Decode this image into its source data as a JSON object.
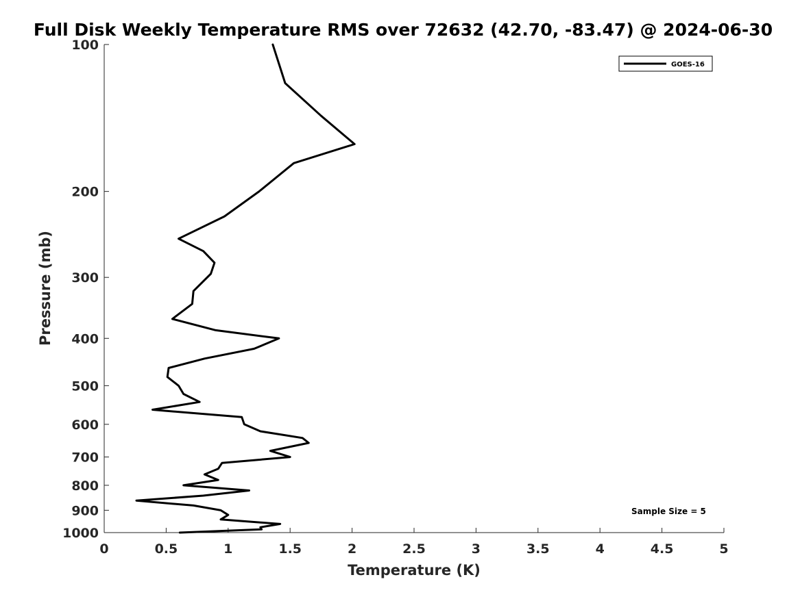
{
  "chart_data": {
    "type": "line",
    "title": "Full Disk Weekly Temperature RMS over 72632 (42.70, -83.47) @ 2024-06-30",
    "xlabel": "Temperature (K)",
    "ylabel": "Pressure (mb)",
    "xlim": [
      0,
      5
    ],
    "ylim": [
      100,
      1000
    ],
    "y_scale": "log",
    "y_reversed": true,
    "x_ticks": [
      "0",
      "0.5",
      "1",
      "1.5",
      "2",
      "2.5",
      "3",
      "3.5",
      "4",
      "4.5",
      "5"
    ],
    "y_ticks": [
      "100",
      "200",
      "300",
      "400",
      "500",
      "600",
      "700",
      "800",
      "900",
      "1000"
    ],
    "grid": false,
    "legend_position": "top-right",
    "annotation": "Sample Size = 5",
    "series": [
      {
        "name": "GOES-16",
        "color": "#000000",
        "points": [
          [
            1.36,
            100
          ],
          [
            1.46,
            120
          ],
          [
            1.75,
            140
          ],
          [
            2.02,
            160
          ],
          [
            1.53,
            175
          ],
          [
            1.25,
            200
          ],
          [
            0.97,
            225
          ],
          [
            0.6,
            250
          ],
          [
            0.8,
            265
          ],
          [
            0.89,
            280
          ],
          [
            0.86,
            295
          ],
          [
            0.72,
            320
          ],
          [
            0.71,
            340
          ],
          [
            0.55,
            365
          ],
          [
            0.9,
            385
          ],
          [
            1.41,
            400
          ],
          [
            1.21,
            420
          ],
          [
            0.81,
            440
          ],
          [
            0.52,
            460
          ],
          [
            0.51,
            480
          ],
          [
            0.6,
            500
          ],
          [
            0.64,
            520
          ],
          [
            0.77,
            540
          ],
          [
            0.39,
            560
          ],
          [
            1.11,
            580
          ],
          [
            1.13,
            600
          ],
          [
            1.26,
            620
          ],
          [
            1.6,
            640
          ],
          [
            1.65,
            655
          ],
          [
            1.34,
            680
          ],
          [
            1.5,
            700
          ],
          [
            0.95,
            720
          ],
          [
            0.92,
            740
          ],
          [
            0.81,
            760
          ],
          [
            0.92,
            780
          ],
          [
            0.64,
            800
          ],
          [
            1.17,
            820
          ],
          [
            0.8,
            840
          ],
          [
            0.26,
            860
          ],
          [
            0.72,
            880
          ],
          [
            0.94,
            900
          ],
          [
            1.0,
            920
          ],
          [
            0.94,
            940
          ],
          [
            1.42,
            960
          ],
          [
            1.26,
            975
          ],
          [
            1.27,
            985
          ],
          [
            0.61,
            1000
          ]
        ]
      }
    ]
  }
}
